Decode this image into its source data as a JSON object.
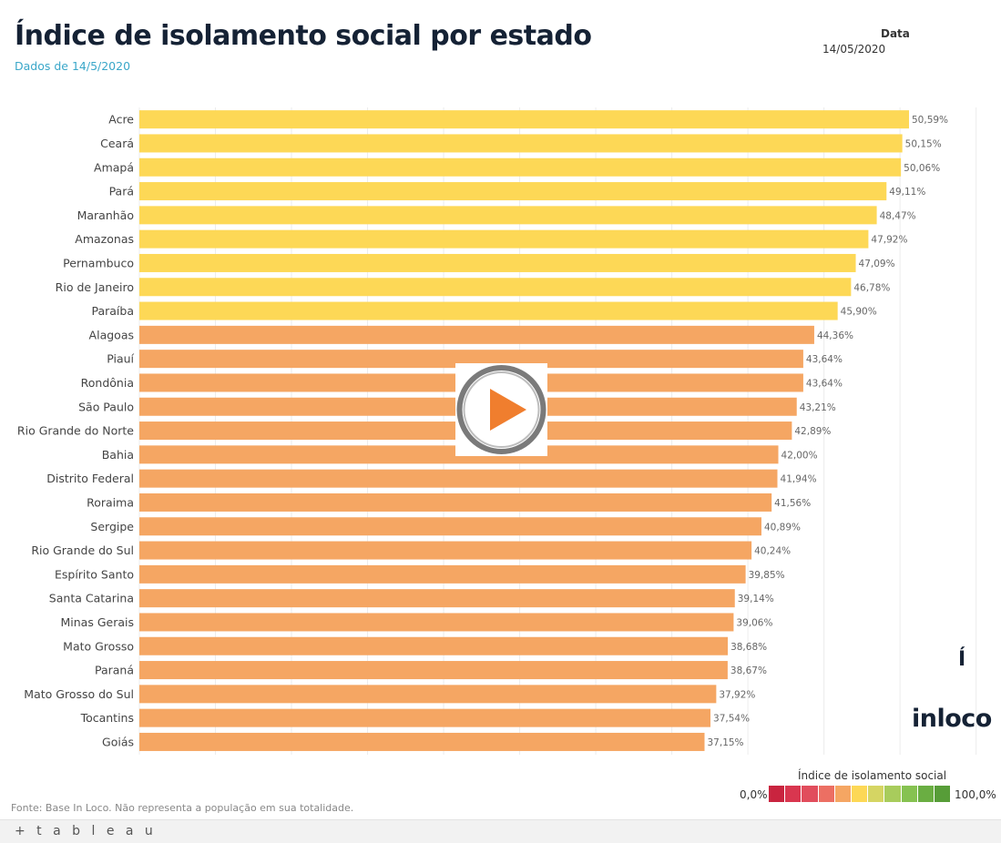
{
  "header": {
    "title": "Índice de isolamento social por estado",
    "subtitle": "Dados de 14/5/2020",
    "filter_label": "Data",
    "filter_value": "14/05/2020"
  },
  "colors": {
    "above_45": "#fdd856",
    "below_45": "#f5a663",
    "title": "#152235",
    "subtitle": "#3aa7c9"
  },
  "chart_data": {
    "type": "bar",
    "orientation": "horizontal",
    "categories": [
      "Acre",
      "Ceará",
      "Amapá",
      "Pará",
      "Maranhão",
      "Amazonas",
      "Pernambuco",
      "Rio de Janeiro",
      "Paraíba",
      "Alagoas",
      "Piauí",
      "Rondônia",
      "São Paulo",
      "Rio Grande do Norte",
      "Bahia",
      "Distrito Federal",
      "Roraima",
      "Sergipe",
      "Rio Grande do Sul",
      "Espírito Santo",
      "Santa Catarina",
      "Minas Gerais",
      "Mato Grosso",
      "Paraná",
      "Mato Grosso do Sul",
      "Tocantins",
      "Goiás"
    ],
    "values": [
      50.59,
      50.15,
      50.06,
      49.11,
      48.47,
      47.92,
      47.09,
      46.78,
      45.9,
      44.36,
      43.64,
      43.64,
      43.21,
      42.89,
      42.0,
      41.94,
      41.56,
      40.89,
      40.24,
      39.85,
      39.14,
      39.06,
      38.68,
      38.67,
      37.92,
      37.54,
      37.15
    ],
    "value_labels": [
      "50,59%",
      "50,15%",
      "50,06%",
      "49,11%",
      "48,47%",
      "47,92%",
      "47,09%",
      "46,78%",
      "45,90%",
      "44,36%",
      "43,64%",
      "43,64%",
      "43,21%",
      "42,89%",
      "42,00%",
      "41,94%",
      "41,56%",
      "40,89%",
      "40,24%",
      "39,85%",
      "39,14%",
      "39,06%",
      "38,68%",
      "38,67%",
      "37,92%",
      "37,54%",
      "37,15%"
    ],
    "xlim": [
      0,
      55
    ],
    "grid": true,
    "xlabel": "",
    "ylabel": ""
  },
  "legend": {
    "title": "Índice de isolamento social",
    "min_label": "0,0%",
    "max_label": "100,0%",
    "colors": [
      "#c9243f",
      "#d9364f",
      "#e14d5c",
      "#ec6f63",
      "#f5a663",
      "#fdd856",
      "#d5d563",
      "#a8cc5c",
      "#86c251",
      "#6aae42",
      "#579d38"
    ]
  },
  "branding": {
    "logo_text": "inloco",
    "side_icon_text": "Í",
    "footer_brand": "+ t a b l e a u"
  },
  "footer": {
    "source": "Fonte: Base In Loco. Não representa a população em sua totalidade."
  }
}
